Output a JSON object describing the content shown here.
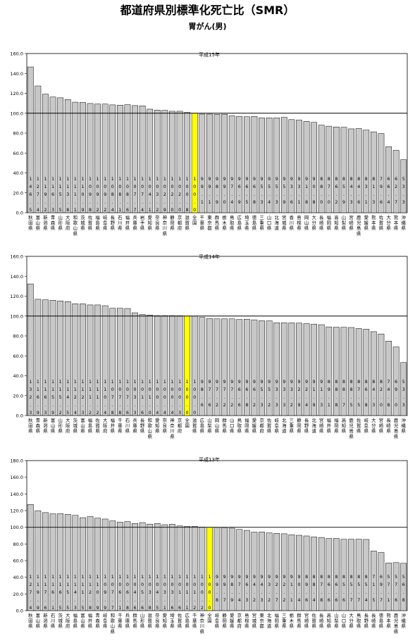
{
  "title": "都道府県別標準化死亡比（SMR）",
  "subtitle": "胃がん(男)",
  "colors": {
    "bar": "#c8c8c8",
    "highlight": "#ffff00",
    "border": "#000000",
    "reference_line": "#000000"
  },
  "chart_data": [
    {
      "type": "bar",
      "title": "平成15年",
      "ylim": [
        0,
        160
      ],
      "yticks": [
        "0.0",
        "20.0",
        "40.0",
        "60.0",
        "80.0",
        "100.0",
        "120.0",
        "140.0",
        "160.0"
      ],
      "reference_line": 100,
      "highlight_category": "全国",
      "categories": [
        "秋田県",
        "富山県",
        "新潟県",
        "青森県",
        "山形県",
        "大阪府",
        "和歌山県",
        "茨城県",
        "佐賀県",
        "福島県",
        "岐阜県",
        "長野県",
        "石川県",
        "福井県",
        "兵庫県",
        "岩手県",
        "愛知県",
        "奈良県",
        "神奈川県",
        "静岡県",
        "京都府",
        "滋賀県",
        "全国",
        "千葉県",
        "東京都",
        "群馬県",
        "栃木県",
        "鳥取県",
        "広島県",
        "埼玉県",
        "徳島県",
        "三重県",
        "山口県",
        "北海道",
        "宮城県",
        "香川県",
        "島根県",
        "岡山県",
        "大分県",
        "長崎県",
        "福岡県",
        "高知県",
        "山梨県",
        "宮崎県",
        "鹿児島県",
        "愛媛県",
        "熊本県",
        "佐賀県",
        "大分県",
        "熊本県",
        "沖縄県"
      ],
      "labels": [
        "秋田県",
        "富山県",
        "新潟県",
        "青森県",
        "山形県",
        "大阪府",
        "和歌山県",
        "茨城県",
        "佐賀県",
        "福島県",
        "岐阜県",
        "長野県",
        "石川県",
        "福井県",
        "兵庫県",
        "岩手県",
        "愛知県",
        "奈良県",
        "神奈川県",
        "静岡県",
        "京都府",
        "滋賀県",
        "全国",
        "千葉県",
        "東京都",
        "群馬県",
        "栃木県",
        "鳥取県",
        "広島県",
        "埼玉県",
        "徳島県",
        "三重県",
        "山口県",
        "北海道",
        "宮城県",
        "香川県",
        "島根県",
        "岡山県",
        "大分県",
        "長崎県",
        "福岡県",
        "高知県",
        "山梨県",
        "宮崎県",
        "鹿児島県",
        "愛媛県",
        "熊本県",
        "佐賀県",
        "大分県",
        "熊本県",
        "沖縄県"
      ],
      "values": [
        146.5,
        127.4,
        119.2,
        116.3,
        115.5,
        113.8,
        111.1,
        110.9,
        109.8,
        109.2,
        109.2,
        108.4,
        108.1,
        108.6,
        107.7,
        107.4,
        104.1,
        103.2,
        102.9,
        102.0,
        102.0,
        100.8,
        100.0,
        99.1,
        99.1,
        98.9,
        99.0,
        97.4,
        96.9,
        96.5,
        96.8,
        95.3,
        95.4,
        95.3,
        95.9,
        93.6,
        93.1,
        91.8,
        90.8,
        88.0,
        87.0,
        86.2,
        85.9,
        84.3,
        84.6,
        83.1,
        81.3,
        79.6,
        66.4,
        62.7,
        53.3
      ],
      "value_labels": [
        "146.5",
        "127.4",
        "119.2",
        "116.3",
        "115.5",
        "113.8",
        "111.1",
        "110.9",
        "109.8",
        "109.2",
        "109.2",
        "108.4",
        "108.1",
        "108.6",
        "107.7",
        "107.4",
        "104.1",
        "103.2",
        "102.9",
        "102.0",
        "102.0",
        "100.8",
        "100.0",
        "99.1",
        "99.1",
        "98.9",
        "99.0",
        "97.4",
        "96.9",
        "96.5",
        "96.8",
        "95.3",
        "95.4",
        "95.3",
        "95.9",
        "93.6",
        "93.1",
        "91.8",
        "90.8",
        "88.0",
        "87.0",
        "86.2",
        "85.9",
        "84.3",
        "84.6",
        "83.1",
        "81.3",
        "79.6",
        "66.4",
        "62.7",
        "53.3"
      ]
    },
    {
      "type": "bar",
      "title": "平成14年",
      "ylim": [
        0,
        160
      ],
      "yticks": [
        "0.0",
        "20.0",
        "40.0",
        "60.0",
        "80.0",
        "100.0",
        "120.0",
        "140.0",
        "160.0"
      ],
      "reference_line": 100,
      "highlight_category": "全国",
      "categories": [
        "秋田県",
        "青森県",
        "新潟県",
        "富山県",
        "山形県",
        "大阪府",
        "茨城県",
        "富山県",
        "福島県",
        "佐賀県",
        "大阪府",
        "福井県",
        "千葉県",
        "石川県",
        "兵庫県",
        "長野県",
        "和歌山県",
        "愛知県",
        "奈良県",
        "神奈川県",
        "京都府",
        "全国",
        "滋賀県",
        "広島県",
        "山梨県",
        "岡山県",
        "群馬県",
        "山口県",
        "鳥取県",
        "福岡県",
        "愛媛県",
        "京都府",
        "佐賀県",
        "岐阜県",
        "北海道",
        "三重県",
        "静岡県",
        "長野県",
        "北海道",
        "宮崎県",
        "福井県",
        "福岡県",
        "高知県",
        "鹿児島県",
        "佐賀県",
        "岐阜県",
        "大分県",
        "宮崎県",
        "長崎県",
        "鹿児島県",
        "沖縄県"
      ],
      "labels": [
        "秋田県",
        "青森県",
        "新潟県",
        "富山県",
        "山形県",
        "大阪府",
        "茨城県",
        "富山県",
        "福島県",
        "佐賀県",
        "大阪府",
        "福井県",
        "千葉県",
        "石川県",
        "兵庫県",
        "長野県",
        "和歌山県",
        "愛知県",
        "奈良県",
        "神奈川県",
        "京都府",
        "全国",
        "滋賀県",
        "広島県",
        "山梨県",
        "岡山県",
        "群馬県",
        "山口県",
        "鳥取県",
        "福岡県",
        "愛媛県",
        "京都府",
        "佐賀県",
        "岐阜県",
        "北海道",
        "三重県",
        "静岡県",
        "長野県",
        "北海道",
        "宮崎県",
        "福井県",
        "福岡県",
        "高知県",
        "鹿児島県",
        "佐賀県",
        "岐阜県",
        "大分県",
        "宮崎県",
        "長崎県",
        "鹿児島県",
        "沖縄県"
      ],
      "values": [
        132.3,
        116.9,
        116.3,
        115.9,
        115.2,
        114.5,
        112.4,
        112.3,
        111.2,
        111.2,
        110.4,
        107.8,
        107.8,
        107.6,
        103.3,
        101.6,
        101.0,
        100.4,
        100.4,
        100.4,
        100.3,
        100.0,
        100.0,
        98.6,
        97.6,
        97.2,
        97.2,
        97.2,
        96.6,
        96.8,
        96.2,
        95.3,
        95.2,
        93.3,
        93.3,
        93.2,
        92.9,
        92.4,
        91.9,
        91.3,
        89.1,
        88.8,
        88.7,
        88.5,
        87.5,
        86.8,
        84.3,
        82.0,
        74.8,
        69.0,
        53.3
      ],
      "value_labels": [
        "132.3",
        "116.9",
        "116.3",
        "115.9",
        "115.2",
        "114.5",
        "112.4",
        "112.3",
        "111.2",
        "111.2",
        "110.4",
        "107.8",
        "107.8",
        "107.6",
        "103.3",
        "101.6",
        "101.0",
        "100.4",
        "100.4",
        "100.4",
        "100.3",
        "100.0",
        "100.0",
        "98.6",
        "97.6",
        "97.2",
        "97.2",
        "97.2",
        "96.6",
        "96.8",
        "96.2",
        "95.3",
        "95.2",
        "93.3",
        "93.3",
        "93.2",
        "92.9",
        "92.4",
        "91.9",
        "91.3",
        "89.1",
        "88.8",
        "88.7",
        "88.5",
        "87.5",
        "86.8",
        "84.3",
        "82.0",
        "74.8",
        "69.0",
        "53.3"
      ]
    },
    {
      "type": "bar",
      "title": "平成13年",
      "ylim": [
        0,
        180
      ],
      "yticks": [
        "0.0",
        "20.0",
        "40.0",
        "60.0",
        "80.0",
        "100.0",
        "120.0",
        "140.0",
        "160.0",
        "180.0"
      ],
      "reference_line": 100,
      "highlight_category": "全国",
      "categories": [
        "秋田県",
        "富山県",
        "新潟県",
        "石川県",
        "茨城県",
        "大阪府",
        "福島県",
        "富山県",
        "福井県",
        "青森県",
        "岐阜県",
        "和歌山県",
        "千葉県",
        "兵庫県",
        "群馬県",
        "山形県",
        "滋賀県",
        "奈良県",
        "愛知県",
        "埼玉県",
        "佐賀県",
        "広島県",
        "千葉県",
        "神奈川県",
        "全国",
        "岐阜県",
        "静岡県",
        "愛媛県",
        "京都府",
        "島根県",
        "宮城県",
        "東京都",
        "北海道",
        "福岡県",
        "三重県",
        "栃木県",
        "群馬県",
        "宮崎県",
        "佐賀県",
        "長崎県",
        "高知県",
        "山梨県",
        "山口県",
        "大分県",
        "鳥取県",
        "長野県",
        "長崎県",
        "徳島県",
        "熊本県",
        "鹿児島県",
        "沖縄県"
      ],
      "labels": [
        "秋田県",
        "富山県",
        "新潟県",
        "石川県",
        "茨城県",
        "大阪府",
        "福島県",
        "富山県",
        "福井県",
        "青森県",
        "岐阜県",
        "和歌山県",
        "千葉県",
        "兵庫県",
        "群馬県",
        "山形県",
        "滋賀県",
        "奈良県",
        "愛知県",
        "埼玉県",
        "佐賀県",
        "広島県",
        "千葉県",
        "神奈川県",
        "全国",
        "岐阜県",
        "静岡県",
        "愛媛県",
        "京都府",
        "島根県",
        "宮城県",
        "東京都",
        "北海道",
        "福岡県",
        "三重県",
        "栃木県",
        "群馬県",
        "宮崎県",
        "佐賀県",
        "長崎県",
        "高知県",
        "山梨県",
        "山口県",
        "大分県",
        "鳥取県",
        "長野県",
        "長崎県",
        "徳島県",
        "熊本県",
        "鹿児島県",
        "沖縄県"
      ],
      "values": [
        127.4,
        119.9,
        117.6,
        116.1,
        116.5,
        115.5,
        114.3,
        111.5,
        112.8,
        110.9,
        109.9,
        107.7,
        106.1,
        106.8,
        104.6,
        105.6,
        103.8,
        104.5,
        103.1,
        103.6,
        101.6,
        101.1,
        101.2,
        100.2,
        100.0,
        99.8,
        99.7,
        98.9,
        97.4,
        96.3,
        94.2,
        94.3,
        93.2,
        92.7,
        92.2,
        91.1,
        90.4,
        89.6,
        88.4,
        87.8,
        86.6,
        86.6,
        85.6,
        85.7,
        85.7,
        85.4,
        71.5,
        69.7,
        57.1,
        57.6,
        56.8
      ],
      "value_labels": [
        "127.4",
        "119.9",
        "117.6",
        "116.1",
        "116.5",
        "115.5",
        "114.3",
        "111.5",
        "112.8",
        "110.9",
        "109.9",
        "107.7",
        "106.1",
        "106.8",
        "104.6",
        "105.6",
        "103.8",
        "104.5",
        "103.1",
        "103.6",
        "101.6",
        "101.1",
        "101.2",
        "100.2",
        "100.0",
        "99.8",
        "99.7",
        "98.9",
        "97.4",
        "96.3",
        "94.2",
        "94.3",
        "93.2",
        "92.7",
        "92.2",
        "91.1",
        "90.4",
        "89.6",
        "88.4",
        "87.8",
        "86.6",
        "86.6",
        "85.6",
        "85.7",
        "85.7",
        "85.4",
        "71.5",
        "69.7",
        "57.1",
        "57.6",
        "56.8"
      ]
    }
  ]
}
